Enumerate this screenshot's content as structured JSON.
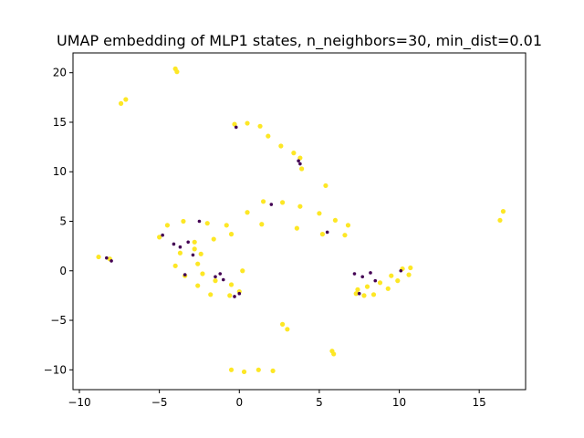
{
  "chart_data": {
    "type": "scatter",
    "title": "UMAP embedding of MLP1 states, n_neighbors=30, min_dist=0.01",
    "xlabel": "",
    "ylabel": "",
    "xlim": [
      -10.4,
      17.9
    ],
    "ylim": [
      -12.0,
      22.0
    ],
    "x_ticks": [
      -10,
      -5,
      0,
      5,
      10,
      15
    ],
    "y_ticks": [
      -10,
      -5,
      0,
      5,
      10,
      15,
      20
    ],
    "x_tick_labels": [
      "−10",
      "−5",
      "0",
      "5",
      "10",
      "15"
    ],
    "y_tick_labels": [
      "−10",
      "−5",
      "0",
      "5",
      "10",
      "15",
      "20"
    ],
    "grid": false,
    "legend": "none",
    "colors": {
      "majority": "#fde725",
      "minority": "#440154"
    },
    "clusters": [
      {
        "color": "majority",
        "points": [
          [
            -4.0,
            20.4
          ],
          [
            -3.9,
            20.1
          ]
        ]
      },
      {
        "color": "majority",
        "points": [
          [
            -7.4,
            16.9
          ],
          [
            -7.1,
            17.3
          ]
        ]
      },
      {
        "color": "majority",
        "points": [
          [
            -0.3,
            14.8
          ],
          [
            0.5,
            14.9
          ],
          [
            1.3,
            14.6
          ],
          [
            1.8,
            13.6
          ],
          [
            2.6,
            12.6
          ],
          [
            3.4,
            11.9
          ],
          [
            3.8,
            11.4
          ],
          [
            3.9,
            10.3
          ]
        ]
      },
      {
        "color": "majority",
        "points": [
          [
            -5.0,
            3.4
          ],
          [
            -4.5,
            4.6
          ],
          [
            -3.5,
            5.0
          ],
          [
            -2.0,
            4.8
          ],
          [
            -0.8,
            4.6
          ],
          [
            0.5,
            5.9
          ],
          [
            1.5,
            7.0
          ],
          [
            2.7,
            6.9
          ],
          [
            3.8,
            6.5
          ],
          [
            5.0,
            5.8
          ],
          [
            6.0,
            5.1
          ],
          [
            6.8,
            4.6
          ],
          [
            6.6,
            3.6
          ],
          [
            5.2,
            3.7
          ],
          [
            3.6,
            4.3
          ],
          [
            1.4,
            4.7
          ],
          [
            -0.5,
            3.7
          ],
          [
            -1.6,
            3.2
          ],
          [
            -2.8,
            2.2
          ],
          [
            -3.7,
            1.8
          ],
          [
            -4.0,
            0.5
          ],
          [
            -3.4,
            -0.5
          ],
          [
            -2.6,
            -1.5
          ],
          [
            -1.8,
            -2.4
          ],
          [
            -0.6,
            -2.5
          ],
          [
            0.0,
            -2.1
          ],
          [
            -0.5,
            -1.4
          ],
          [
            -1.5,
            -1.0
          ],
          [
            -2.3,
            -0.3
          ],
          [
            -2.6,
            0.7
          ],
          [
            -2.4,
            1.7
          ],
          [
            -2.8,
            2.9
          ]
        ]
      },
      {
        "color": "majority",
        "points": [
          [
            7.4,
            -1.9
          ],
          [
            8.0,
            -1.6
          ],
          [
            8.8,
            -1.2
          ],
          [
            9.5,
            -0.5
          ],
          [
            10.2,
            0.2
          ],
          [
            10.7,
            0.3
          ],
          [
            10.6,
            -0.4
          ],
          [
            9.9,
            -1.0
          ],
          [
            9.3,
            -1.8
          ],
          [
            8.4,
            -2.4
          ],
          [
            7.8,
            -2.5
          ],
          [
            7.3,
            -2.3
          ]
        ]
      },
      {
        "color": "majority",
        "points": [
          [
            -8.8,
            1.4
          ],
          [
            -8.1,
            1.2
          ]
        ]
      },
      {
        "color": "majority",
        "points": [
          [
            16.3,
            5.1
          ],
          [
            16.5,
            6.0
          ]
        ]
      },
      {
        "color": "majority",
        "points": [
          [
            5.4,
            8.6
          ],
          [
            0.2,
            0.0
          ],
          [
            2.7,
            -5.4
          ],
          [
            3.0,
            -5.9
          ],
          [
            5.8,
            -8.1
          ],
          [
            5.9,
            -8.4
          ]
        ]
      },
      {
        "color": "majority",
        "points": [
          [
            -0.5,
            -10.0
          ],
          [
            0.3,
            -10.2
          ],
          [
            1.2,
            -10.0
          ],
          [
            2.1,
            -10.1
          ]
        ]
      },
      {
        "color": "minority",
        "points": [
          [
            -0.2,
            14.5
          ],
          [
            3.7,
            11.1
          ],
          [
            3.8,
            10.8
          ],
          [
            -4.1,
            2.7
          ],
          [
            -3.7,
            2.4
          ],
          [
            -3.2,
            2.9
          ],
          [
            -2.9,
            1.6
          ],
          [
            -3.4,
            -0.4
          ],
          [
            -1.5,
            -0.6
          ],
          [
            -1.0,
            -0.9
          ],
          [
            -1.2,
            -0.3
          ],
          [
            0.0,
            -2.3
          ],
          [
            -0.3,
            -2.6
          ],
          [
            7.2,
            -0.3
          ],
          [
            7.7,
            -0.6
          ],
          [
            8.5,
            -1.0
          ],
          [
            8.2,
            -0.2
          ],
          [
            10.1,
            0.0
          ],
          [
            -4.8,
            3.6
          ],
          [
            -2.5,
            5.0
          ],
          [
            2.0,
            6.7
          ],
          [
            5.5,
            3.9
          ],
          [
            7.5,
            -2.3
          ],
          [
            -8.3,
            1.3
          ],
          [
            -8.0,
            1.0
          ]
        ]
      }
    ]
  }
}
